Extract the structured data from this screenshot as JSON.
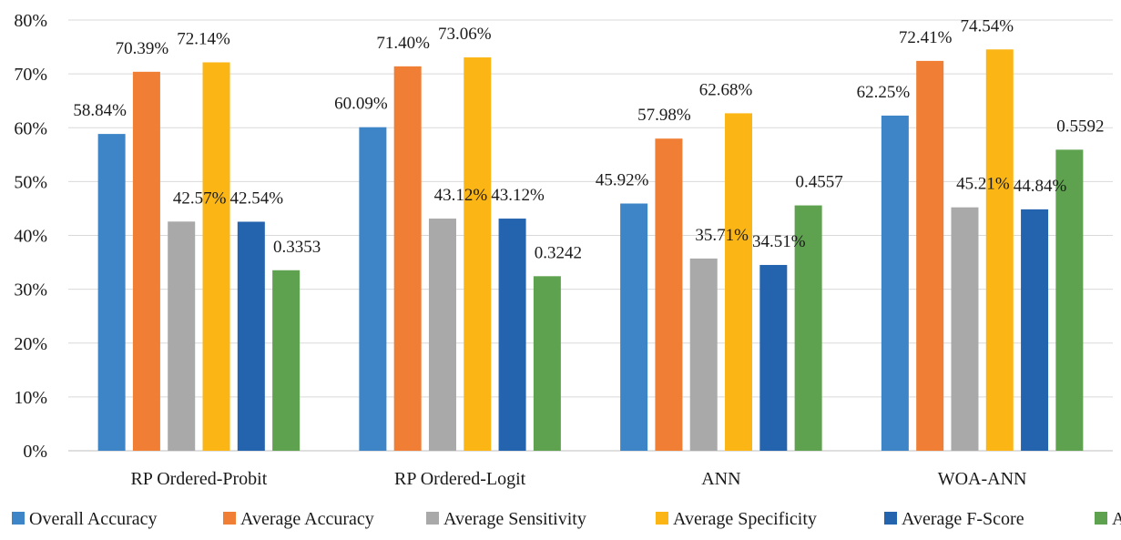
{
  "chart_data": {
    "type": "bar",
    "title": "",
    "xlabel": "",
    "ylabel": "",
    "ylim": [
      0,
      80
    ],
    "y_ticks": [
      "0%",
      "10%",
      "20%",
      "30%",
      "40%",
      "50%",
      "60%",
      "70%",
      "80%"
    ],
    "y_tick_values": [
      0,
      10,
      20,
      30,
      40,
      50,
      60,
      70,
      80
    ],
    "grid": true,
    "legend_position": "bottom",
    "categories": [
      "RP Ordered-Probit",
      "RP Ordered-Logit",
      "ANN",
      "WOA-ANN"
    ],
    "series": [
      {
        "name": "Overall Accuracy",
        "color": "#3d85c6",
        "values": [
          58.84,
          60.09,
          45.92,
          62.25
        ],
        "labels": [
          "58.84%",
          "60.09%",
          "45.92%",
          "62.25%"
        ]
      },
      {
        "name": "Average Accuracy",
        "color": "#f07f35",
        "values": [
          70.39,
          71.4,
          57.98,
          72.41
        ],
        "labels": [
          "70.39%",
          "71.40%",
          "57.98%",
          "72.41%"
        ]
      },
      {
        "name": "Average Sensitivity",
        "color": "#a9a9a9",
        "values": [
          42.57,
          43.12,
          35.71,
          45.21
        ],
        "labels": [
          "42.57%",
          "43.12%",
          "35.71%",
          "45.21%"
        ]
      },
      {
        "name": "Average Specificity",
        "color": "#fbb616",
        "values": [
          72.14,
          73.06,
          62.68,
          74.54
        ],
        "labels": [
          "72.14%",
          "73.06%",
          "62.68%",
          "74.54%"
        ]
      },
      {
        "name": "Average F-Score",
        "color": "#2463ad",
        "values": [
          42.54,
          43.12,
          34.51,
          44.84
        ],
        "labels": [
          "42.54%",
          "43.12%",
          "34.51%",
          "44.84%"
        ]
      },
      {
        "name": "AUC",
        "color": "#5ea24f",
        "values": [
          33.53,
          32.42,
          45.57,
          55.92
        ],
        "labels": [
          "0.3353",
          "0.3242",
          "0.4557",
          "0.5592"
        ]
      }
    ]
  }
}
